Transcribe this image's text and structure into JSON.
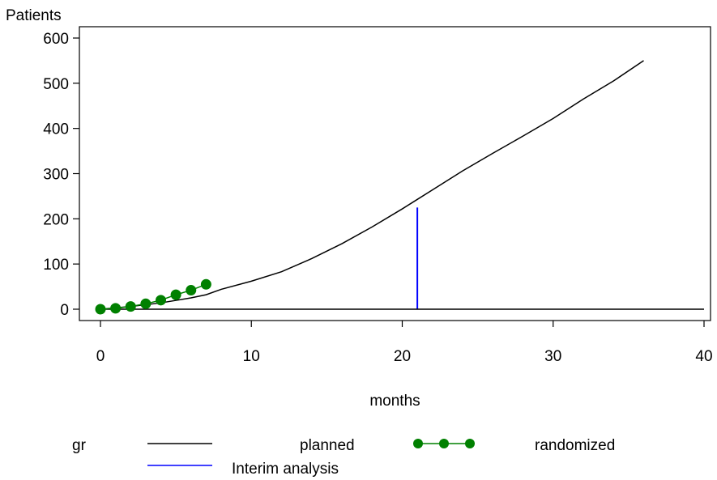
{
  "chart_data": {
    "type": "line",
    "xlabel": "months",
    "ylabel": "Patients",
    "xlim": [
      0,
      40
    ],
    "ylim": [
      0,
      600
    ],
    "xticks": [
      0,
      10,
      20,
      30,
      40
    ],
    "yticks": [
      0,
      100,
      200,
      300,
      400,
      500,
      600
    ],
    "grid": false,
    "series": [
      {
        "name": "planned",
        "color": "#000000",
        "marker": "none",
        "x": [
          0,
          2,
          4,
          6,
          7,
          8,
          10,
          12,
          14,
          16,
          18,
          20,
          22,
          24,
          26,
          28,
          30,
          32,
          34,
          36
        ],
        "y": [
          0,
          6,
          14,
          25,
          32,
          44,
          62,
          83,
          112,
          145,
          182,
          222,
          264,
          306,
          345,
          383,
          422,
          465,
          505,
          550
        ]
      },
      {
        "name": "randomized",
        "color": "#008000",
        "marker": "circle",
        "x": [
          0,
          1,
          2,
          3,
          4,
          5,
          6,
          7
        ],
        "y": [
          0,
          2,
          6,
          12,
          20,
          32,
          42,
          55
        ]
      }
    ],
    "reference_lines": [
      {
        "name": "Interim analysis",
        "color": "#0000ff",
        "x": 21,
        "y_from": 0,
        "y_to": 225
      },
      {
        "name": "",
        "color": "#000000",
        "y": 0,
        "x_from": 0,
        "x_to": 40
      }
    ],
    "legend": {
      "placement": "bottom",
      "title": "gr",
      "entries": [
        {
          "label": "planned",
          "color": "#000000",
          "marker": "none"
        },
        {
          "label": "randomized",
          "color": "#008000",
          "marker": "circle"
        },
        {
          "label": "Interim analysis",
          "color": "#0000ff",
          "marker": "none"
        }
      ]
    }
  }
}
